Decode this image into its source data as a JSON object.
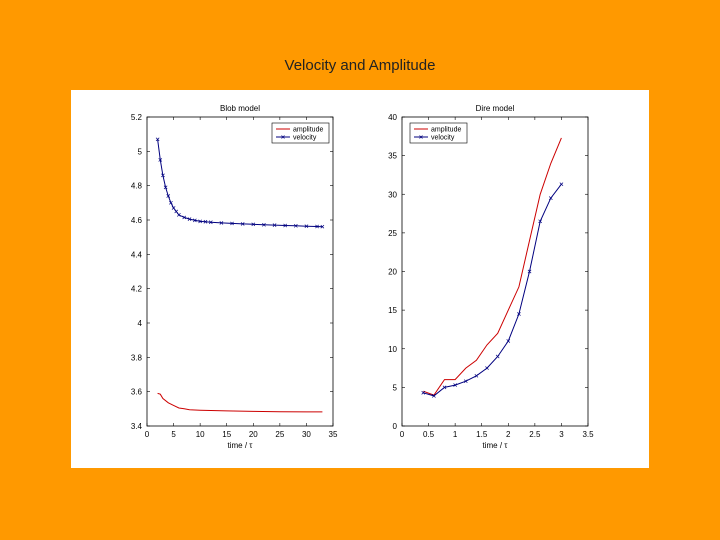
{
  "slide": {
    "title": "Velocity and Amplitude"
  },
  "colors": {
    "background": "#ff9900",
    "panel": "#ffffff",
    "amplitude": "#cc0000",
    "velocity": "#00007f"
  },
  "chart_data": [
    {
      "type": "line",
      "title": "Blob model",
      "xlabel": "time / τ",
      "ylabel": "",
      "xlim": [
        0,
        35
      ],
      "ylim": [
        3.4,
        5.2
      ],
      "xticks": [
        0,
        5,
        10,
        15,
        20,
        25,
        30,
        35
      ],
      "yticks": [
        3.4,
        3.6,
        3.8,
        4,
        4.2,
        4.4,
        4.6,
        4.8,
        5,
        5.2
      ],
      "xtick_labels": [
        "0",
        "5",
        "10",
        "15",
        "20",
        "25",
        "30",
        "35"
      ],
      "ytick_labels": [
        "3.4",
        "3.6",
        "3.8",
        "4",
        "4.2",
        "4.4",
        "4.6",
        "4.8",
        "5",
        "5.2"
      ],
      "legend": {
        "position": "top-right",
        "entries": [
          "amplitude",
          "velocity"
        ]
      },
      "series": [
        {
          "name": "amplitude",
          "marker": "none",
          "x": [
            2,
            2.5,
            3,
            4,
            5,
            6,
            7,
            8,
            10,
            12,
            15,
            20,
            25,
            30,
            33
          ],
          "y": [
            3.59,
            3.585,
            3.56,
            3.535,
            3.52,
            3.505,
            3.5,
            3.495,
            3.492,
            3.49,
            3.488,
            3.485,
            3.483,
            3.482,
            3.482
          ]
        },
        {
          "name": "velocity",
          "marker": "x",
          "x": [
            2,
            2.5,
            3,
            3.5,
            4,
            4.5,
            5,
            5.5,
            6,
            7,
            8,
            9,
            10,
            11,
            12,
            14,
            16,
            18,
            20,
            22,
            24,
            26,
            28,
            30,
            32,
            33
          ],
          "y": [
            5.07,
            4.95,
            4.86,
            4.79,
            4.74,
            4.7,
            4.67,
            4.65,
            4.63,
            4.615,
            4.605,
            4.598,
            4.592,
            4.59,
            4.587,
            4.583,
            4.58,
            4.577,
            4.575,
            4.572,
            4.57,
            4.568,
            4.566,
            4.564,
            4.562,
            4.561
          ]
        }
      ]
    },
    {
      "type": "line",
      "title": "Dire model",
      "xlabel": "time / τ",
      "ylabel": "",
      "xlim": [
        0,
        3.5
      ],
      "ylim": [
        0,
        40
      ],
      "xticks": [
        0,
        0.5,
        1,
        1.5,
        2,
        2.5,
        3,
        3.5
      ],
      "yticks": [
        0,
        5,
        10,
        15,
        20,
        25,
        30,
        35,
        40
      ],
      "xtick_labels": [
        "0",
        "0.5",
        "1",
        "1.5",
        "2",
        "2.5",
        "3",
        "3.5"
      ],
      "ytick_labels": [
        "0",
        "5",
        "10",
        "15",
        "20",
        "25",
        "30",
        "35",
        "40"
      ],
      "legend": {
        "position": "top-left",
        "entries": [
          "amplitude",
          "velocity"
        ]
      },
      "series": [
        {
          "name": "amplitude",
          "marker": "none",
          "x": [
            0.4,
            0.6,
            0.8,
            1.0,
            1.2,
            1.4,
            1.6,
            1.8,
            2.0,
            2.2,
            2.4,
            2.6,
            2.8,
            3.0
          ],
          "y": [
            4.5,
            4.0,
            6.0,
            6.0,
            7.5,
            8.5,
            10.5,
            12.0,
            15.0,
            18.0,
            24.0,
            30.0,
            34.0,
            37.3
          ]
        },
        {
          "name": "velocity",
          "marker": "x",
          "x": [
            0.4,
            0.6,
            0.8,
            1.0,
            1.2,
            1.4,
            1.6,
            1.8,
            2.0,
            2.2,
            2.4,
            2.6,
            2.8,
            3.0
          ],
          "y": [
            4.3,
            3.9,
            5.0,
            5.3,
            5.8,
            6.5,
            7.5,
            9.0,
            11.0,
            14.5,
            20.0,
            26.5,
            29.5,
            31.3
          ]
        }
      ]
    }
  ]
}
